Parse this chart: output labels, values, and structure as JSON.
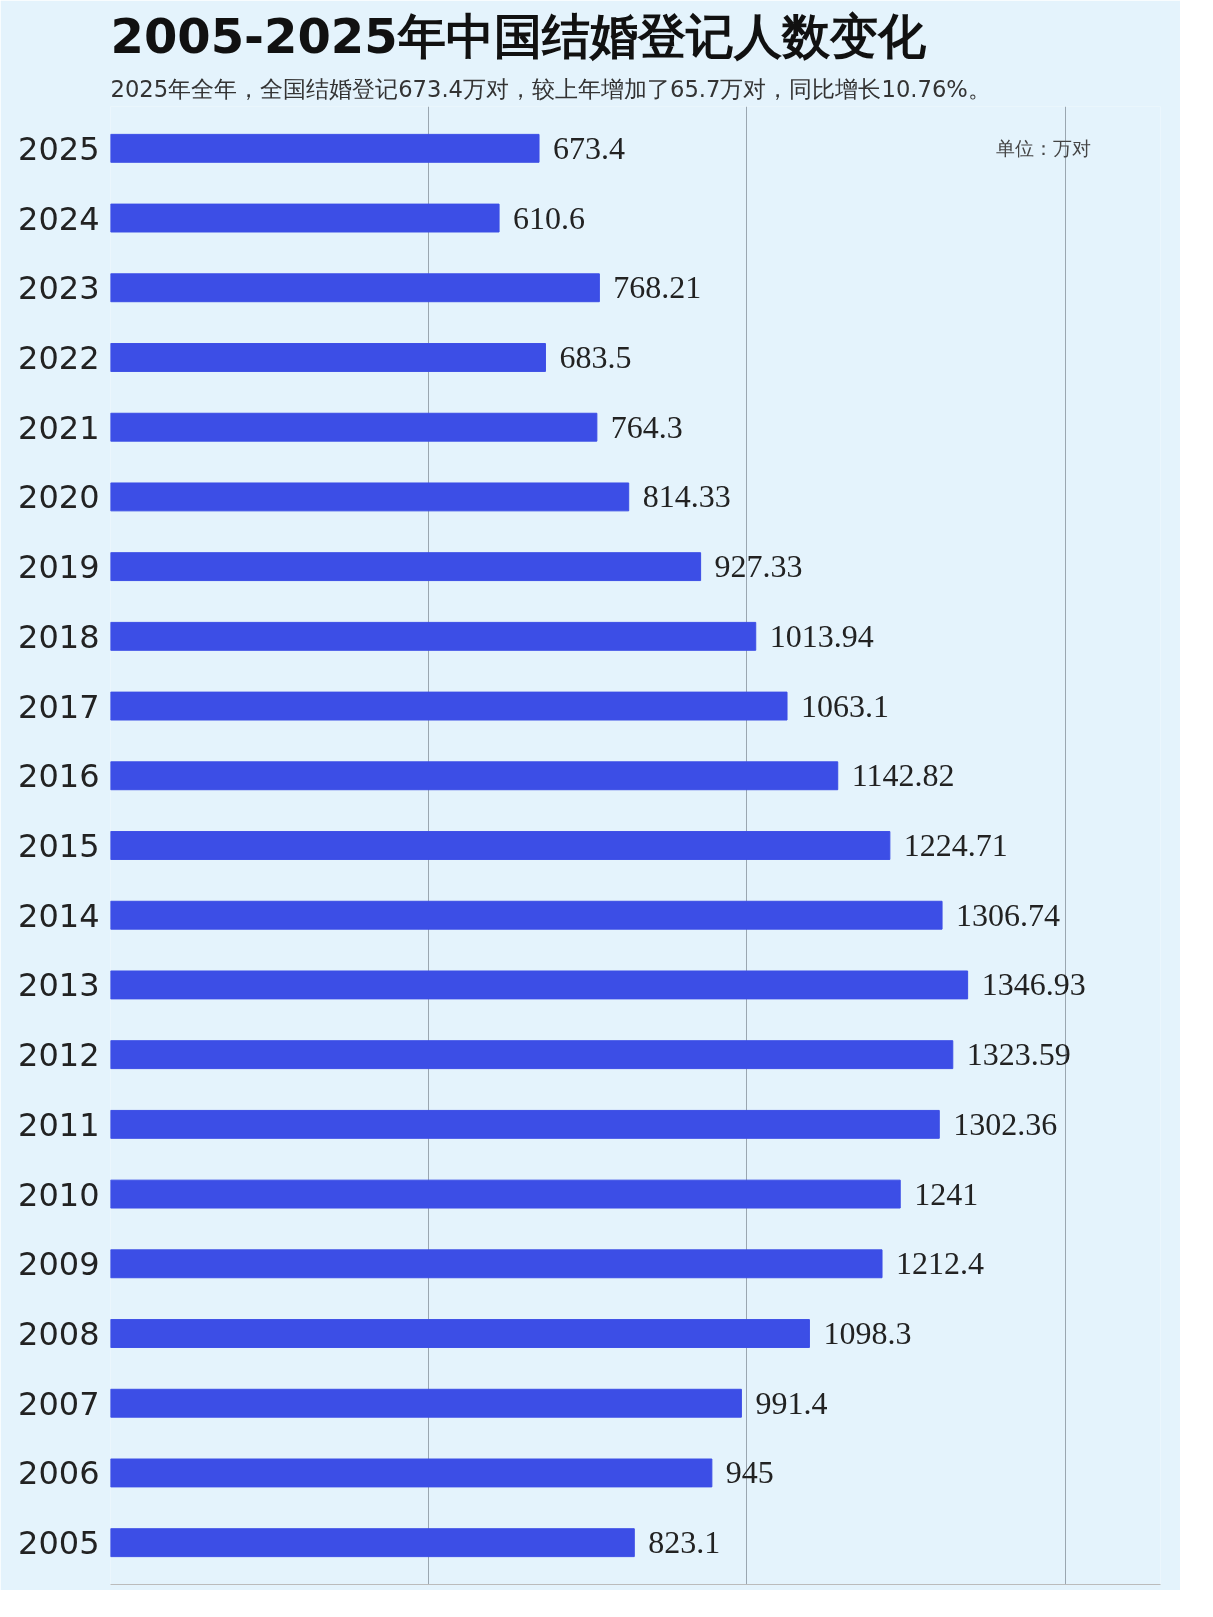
{
  "chart_data": {
    "type": "bar",
    "orientation": "horizontal",
    "title": "2005-2025年中国结婚登记人数变化",
    "subtitle": "2025年全年，全国结婚登记673.4万对，较上年增加了65.7万对，同比增长10.76%。",
    "annotations": [
      "单位：万对"
    ],
    "categories": [
      "2025",
      "2024",
      "2023",
      "2022",
      "2021",
      "2020",
      "2019",
      "2018",
      "2017",
      "2016",
      "2015",
      "2014",
      "2013",
      "2012",
      "2011",
      "2010",
      "2009",
      "2008",
      "2007",
      "2006",
      "2005"
    ],
    "values": [
      673.4,
      610.6,
      768.21,
      683.5,
      764.3,
      814.33,
      927.33,
      1013.94,
      1063.1,
      1142.82,
      1224.71,
      1306.74,
      1346.93,
      1323.59,
      1302.36,
      1241,
      1212.4,
      1098.3,
      991.4,
      945,
      823.1
    ],
    "color": "#3c4ee6",
    "data_labels": true,
    "xlim": [
      0,
      1650
    ],
    "xticks": [
      {
        "value": 0,
        "label": null
      },
      {
        "value": 500,
        "label": null
      },
      {
        "value": 1000,
        "label": null
      },
      {
        "value": 1500,
        "label": null
      }
    ],
    "grid": "x",
    "tick_labels": "y"
  }
}
